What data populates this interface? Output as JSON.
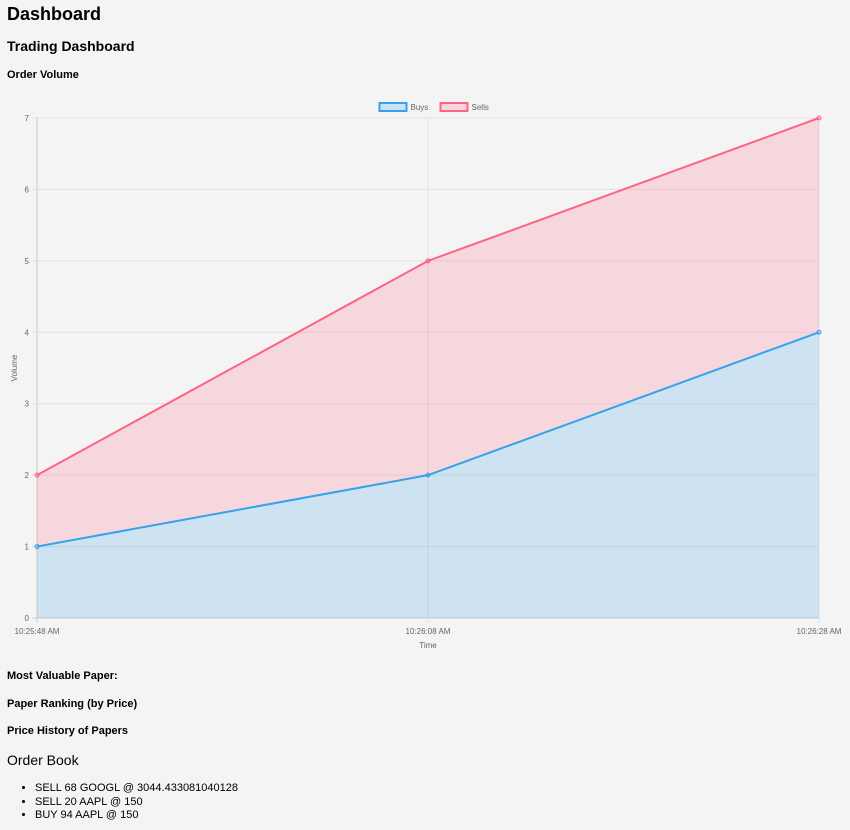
{
  "page": {
    "title": "Dashboard",
    "subtitle": "Trading Dashboard",
    "sections": {
      "order_volume": "Order Volume",
      "most_valuable": "Most Valuable Paper:",
      "ranking": "Paper Ranking (by Price)",
      "history": "Price History of Papers",
      "order_book": "Order Book"
    }
  },
  "order_book": {
    "items": [
      "SELL 68 GOOGL @ 3044.433081040128",
      "SELL 20 AAPL @ 150",
      "BUY 94 AAPL @ 150"
    ]
  },
  "chart_data": {
    "type": "area",
    "stacked": true,
    "x": [
      "10:25:48 AM",
      "10:26:08 AM",
      "10:26:28 AM"
    ],
    "xlabel": "Time",
    "ylabel": "Volume",
    "ylim": [
      0,
      7
    ],
    "yticks": [
      "0",
      "1",
      "2",
      "3",
      "4",
      "5",
      "6",
      "7"
    ],
    "grid": true,
    "legend": "top-center",
    "series": [
      {
        "name": "Buys",
        "values": [
          1,
          2,
          4
        ],
        "color": "#36a2eb",
        "fill": "rgba(54,162,235,0.2)"
      },
      {
        "name": "Sells",
        "values": [
          1,
          3,
          3
        ],
        "color": "#ff6384",
        "fill": "rgba(255,99,132,0.2)"
      }
    ]
  }
}
